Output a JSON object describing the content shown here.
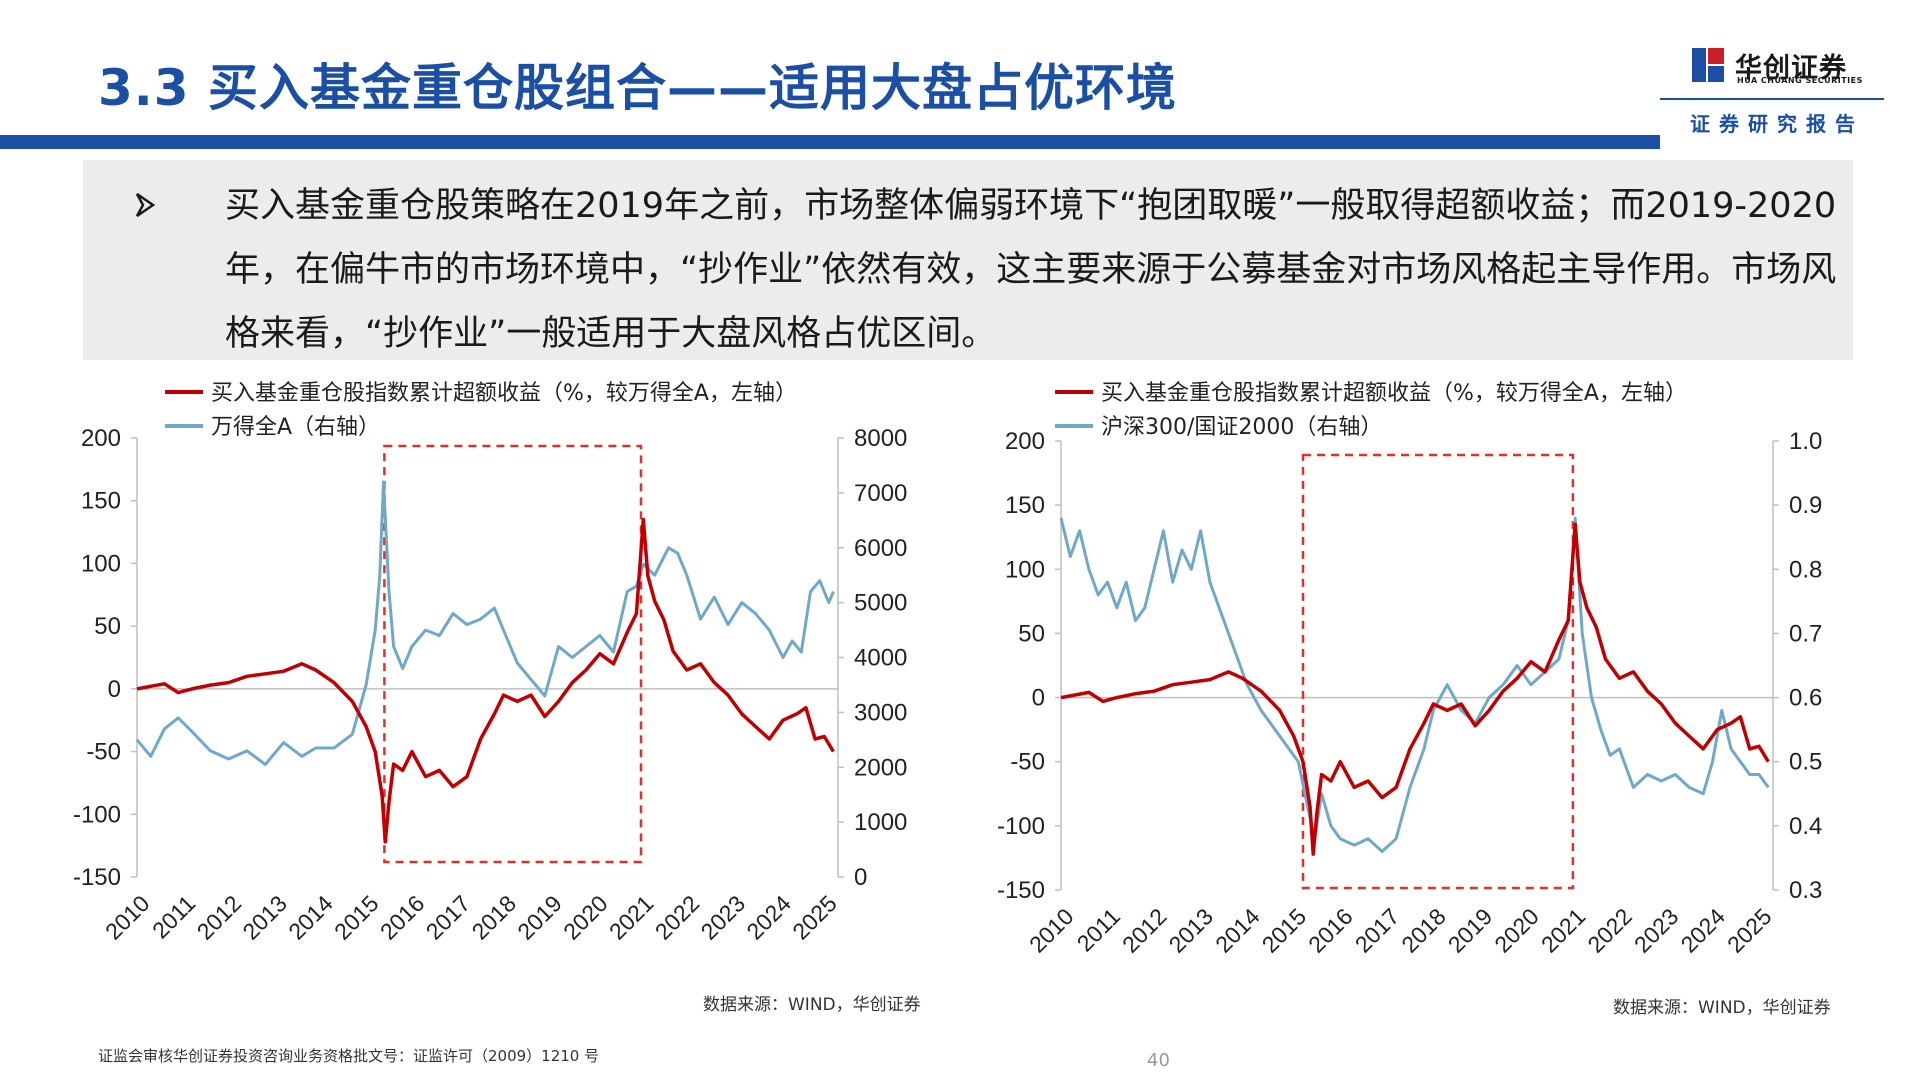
{
  "header": {
    "title": "3.3 买入基金重仓股组合——适用大盘占优环境",
    "logo_cn": "华创证券",
    "logo_en": "HUA CHUANG SECURITIES",
    "report_tag": "证券研究报告",
    "brand_color": "#1a4fa3",
    "logo_accent": "#c8202b"
  },
  "summary": {
    "bullet_icon": "arrow-bullet-icon",
    "text": "买入基金重仓股策略在2019年之前，市场整体偏弱环境下“抱团取暖”一般取得超额收益；而2019-2020年，在偏牛市的市场环境中，“抄作业”依然有效，这主要来源于公募基金对市场风格起主导作用。市场风格来看，“抄作业”一般适用于大盘风格占优区间。"
  },
  "chart_data": [
    {
      "type": "line",
      "x_ticks": [
        "2010",
        "2011",
        "2012",
        "2013",
        "2014",
        "2015",
        "2016",
        "2017",
        "2018",
        "2019",
        "2020",
        "2021",
        "2022",
        "2023",
        "2024",
        "2025"
      ],
      "ylim": [
        -150,
        200
      ],
      "y_ticks": [
        "200",
        "150",
        "100",
        "50",
        "0",
        "-50",
        "-100",
        "-150"
      ],
      "y2lim": [
        0,
        8000
      ],
      "y2_ticks": [
        "8000",
        "7000",
        "6000",
        "5000",
        "4000",
        "3000",
        "2000",
        "1000",
        "0"
      ],
      "highlight_range": [
        2015.4,
        2021.0
      ],
      "series": [
        {
          "name": "买入基金重仓股指数累计超额收益（%，较万得全A，左轴）",
          "axis": "left",
          "color": "#c00000",
          "points": [
            [
              2010.0,
              0
            ],
            [
              2010.3,
              2
            ],
            [
              2010.6,
              4
            ],
            [
              2010.9,
              -3
            ],
            [
              2011.2,
              0
            ],
            [
              2011.6,
              3
            ],
            [
              2012.0,
              5
            ],
            [
              2012.4,
              10
            ],
            [
              2012.8,
              12
            ],
            [
              2013.2,
              14
            ],
            [
              2013.6,
              20
            ],
            [
              2013.9,
              15
            ],
            [
              2014.3,
              5
            ],
            [
              2014.7,
              -10
            ],
            [
              2015.0,
              -30
            ],
            [
              2015.2,
              -50
            ],
            [
              2015.35,
              -85
            ],
            [
              2015.42,
              -122
            ],
            [
              2015.5,
              -90
            ],
            [
              2015.6,
              -60
            ],
            [
              2015.8,
              -65
            ],
            [
              2016.0,
              -50
            ],
            [
              2016.3,
              -70
            ],
            [
              2016.6,
              -65
            ],
            [
              2016.9,
              -78
            ],
            [
              2017.2,
              -70
            ],
            [
              2017.5,
              -40
            ],
            [
              2017.8,
              -20
            ],
            [
              2018.0,
              -5
            ],
            [
              2018.3,
              -10
            ],
            [
              2018.6,
              -5
            ],
            [
              2018.9,
              -22
            ],
            [
              2019.2,
              -10
            ],
            [
              2019.5,
              5
            ],
            [
              2019.8,
              15
            ],
            [
              2020.1,
              28
            ],
            [
              2020.4,
              20
            ],
            [
              2020.7,
              45
            ],
            [
              2020.9,
              60
            ],
            [
              2021.05,
              135
            ],
            [
              2021.15,
              90
            ],
            [
              2021.3,
              70
            ],
            [
              2021.5,
              55
            ],
            [
              2021.7,
              30
            ],
            [
              2022.0,
              15
            ],
            [
              2022.3,
              20
            ],
            [
              2022.6,
              5
            ],
            [
              2022.9,
              -5
            ],
            [
              2023.2,
              -20
            ],
            [
              2023.5,
              -30
            ],
            [
              2023.8,
              -40
            ],
            [
              2024.1,
              -25
            ],
            [
              2024.4,
              -20
            ],
            [
              2024.6,
              -15
            ],
            [
              2024.8,
              -40
            ],
            [
              2025.0,
              -38
            ],
            [
              2025.2,
              -50
            ]
          ]
        },
        {
          "name": "万得全A（右轴）",
          "axis": "right",
          "color": "#6fa8c8",
          "points": [
            [
              2010.0,
              2500
            ],
            [
              2010.3,
              2200
            ],
            [
              2010.6,
              2700
            ],
            [
              2010.9,
              2900
            ],
            [
              2011.2,
              2650
            ],
            [
              2011.6,
              2300
            ],
            [
              2012.0,
              2150
            ],
            [
              2012.4,
              2300
            ],
            [
              2012.8,
              2050
            ],
            [
              2013.2,
              2450
            ],
            [
              2013.6,
              2200
            ],
            [
              2013.9,
              2350
            ],
            [
              2014.3,
              2350
            ],
            [
              2014.7,
              2600
            ],
            [
              2015.0,
              3500
            ],
            [
              2015.2,
              4500
            ],
            [
              2015.3,
              5500
            ],
            [
              2015.38,
              7200
            ],
            [
              2015.5,
              5200
            ],
            [
              2015.6,
              4200
            ],
            [
              2015.8,
              3800
            ],
            [
              2016.0,
              4200
            ],
            [
              2016.3,
              4500
            ],
            [
              2016.6,
              4400
            ],
            [
              2016.9,
              4800
            ],
            [
              2017.2,
              4600
            ],
            [
              2017.5,
              4700
            ],
            [
              2017.8,
              4900
            ],
            [
              2018.0,
              4500
            ],
            [
              2018.3,
              3900
            ],
            [
              2018.6,
              3600
            ],
            [
              2018.9,
              3300
            ],
            [
              2019.2,
              4200
            ],
            [
              2019.5,
              4000
            ],
            [
              2019.8,
              4200
            ],
            [
              2020.1,
              4400
            ],
            [
              2020.4,
              4100
            ],
            [
              2020.7,
              5200
            ],
            [
              2020.9,
              5300
            ],
            [
              2021.05,
              5700
            ],
            [
              2021.3,
              5500
            ],
            [
              2021.6,
              6000
            ],
            [
              2021.8,
              5900
            ],
            [
              2022.0,
              5500
            ],
            [
              2022.3,
              4700
            ],
            [
              2022.6,
              5100
            ],
            [
              2022.9,
              4600
            ],
            [
              2023.2,
              5000
            ],
            [
              2023.5,
              4800
            ],
            [
              2023.8,
              4500
            ],
            [
              2024.1,
              4000
            ],
            [
              2024.3,
              4300
            ],
            [
              2024.5,
              4100
            ],
            [
              2024.7,
              5200
            ],
            [
              2024.9,
              5400
            ],
            [
              2025.1,
              5000
            ],
            [
              2025.2,
              5200
            ]
          ]
        }
      ]
    },
    {
      "type": "line",
      "x_ticks": [
        "2010",
        "2011",
        "2012",
        "2013",
        "2014",
        "2015",
        "2016",
        "2017",
        "2018",
        "2019",
        "2020",
        "2021",
        "2022",
        "2023",
        "2024",
        "2025"
      ],
      "ylim": [
        -150,
        200
      ],
      "y_ticks": [
        "200",
        "150",
        "100",
        "50",
        "0",
        "-50",
        "-100",
        "-150"
      ],
      "y2lim": [
        0.3,
        1.0
      ],
      "y2_ticks": [
        "1.0",
        "0.9",
        "0.8",
        "0.7",
        "0.6",
        "0.5",
        "0.4",
        "0.3"
      ],
      "highlight_range": [
        2015.2,
        2021.0
      ],
      "series": [
        {
          "name": "买入基金重仓股指数累计超额收益（%，较万得全A，左轴）",
          "axis": "left",
          "color": "#c00000",
          "points": [
            [
              2010.0,
              0
            ],
            [
              2010.3,
              2
            ],
            [
              2010.6,
              4
            ],
            [
              2010.9,
              -3
            ],
            [
              2011.2,
              0
            ],
            [
              2011.6,
              3
            ],
            [
              2012.0,
              5
            ],
            [
              2012.4,
              10
            ],
            [
              2012.8,
              12
            ],
            [
              2013.2,
              14
            ],
            [
              2013.6,
              20
            ],
            [
              2013.9,
              15
            ],
            [
              2014.3,
              5
            ],
            [
              2014.7,
              -10
            ],
            [
              2015.0,
              -30
            ],
            [
              2015.2,
              -50
            ],
            [
              2015.35,
              -85
            ],
            [
              2015.42,
              -122
            ],
            [
              2015.5,
              -90
            ],
            [
              2015.6,
              -60
            ],
            [
              2015.8,
              -65
            ],
            [
              2016.0,
              -50
            ],
            [
              2016.3,
              -70
            ],
            [
              2016.6,
              -65
            ],
            [
              2016.9,
              -78
            ],
            [
              2017.2,
              -70
            ],
            [
              2017.5,
              -40
            ],
            [
              2017.8,
              -20
            ],
            [
              2018.0,
              -5
            ],
            [
              2018.3,
              -10
            ],
            [
              2018.6,
              -5
            ],
            [
              2018.9,
              -22
            ],
            [
              2019.2,
              -10
            ],
            [
              2019.5,
              5
            ],
            [
              2019.8,
              15
            ],
            [
              2020.1,
              28
            ],
            [
              2020.4,
              20
            ],
            [
              2020.7,
              45
            ],
            [
              2020.9,
              60
            ],
            [
              2021.05,
              135
            ],
            [
              2021.15,
              90
            ],
            [
              2021.3,
              70
            ],
            [
              2021.5,
              55
            ],
            [
              2021.7,
              30
            ],
            [
              2022.0,
              15
            ],
            [
              2022.3,
              20
            ],
            [
              2022.6,
              5
            ],
            [
              2022.9,
              -5
            ],
            [
              2023.2,
              -20
            ],
            [
              2023.5,
              -30
            ],
            [
              2023.8,
              -40
            ],
            [
              2024.1,
              -25
            ],
            [
              2024.4,
              -20
            ],
            [
              2024.6,
              -15
            ],
            [
              2024.8,
              -40
            ],
            [
              2025.0,
              -38
            ],
            [
              2025.2,
              -50
            ]
          ]
        },
        {
          "name": "沪深300/国证2000（右轴）",
          "axis": "right",
          "color": "#6fa8c8",
          "points": [
            [
              2010.0,
              0.88
            ],
            [
              2010.2,
              0.82
            ],
            [
              2010.4,
              0.86
            ],
            [
              2010.6,
              0.8
            ],
            [
              2010.8,
              0.76
            ],
            [
              2011.0,
              0.78
            ],
            [
              2011.2,
              0.74
            ],
            [
              2011.4,
              0.78
            ],
            [
              2011.6,
              0.72
            ],
            [
              2011.8,
              0.74
            ],
            [
              2012.0,
              0.8
            ],
            [
              2012.2,
              0.86
            ],
            [
              2012.4,
              0.78
            ],
            [
              2012.6,
              0.83
            ],
            [
              2012.8,
              0.8
            ],
            [
              2013.0,
              0.86
            ],
            [
              2013.2,
              0.78
            ],
            [
              2013.4,
              0.74
            ],
            [
              2013.6,
              0.7
            ],
            [
              2013.8,
              0.66
            ],
            [
              2014.0,
              0.62
            ],
            [
              2014.3,
              0.58
            ],
            [
              2014.6,
              0.55
            ],
            [
              2014.9,
              0.52
            ],
            [
              2015.1,
              0.5
            ],
            [
              2015.3,
              0.43
            ],
            [
              2015.45,
              0.38
            ],
            [
              2015.6,
              0.45
            ],
            [
              2015.8,
              0.4
            ],
            [
              2016.0,
              0.38
            ],
            [
              2016.3,
              0.37
            ],
            [
              2016.6,
              0.38
            ],
            [
              2016.9,
              0.36
            ],
            [
              2017.2,
              0.38
            ],
            [
              2017.5,
              0.46
            ],
            [
              2017.8,
              0.52
            ],
            [
              2018.0,
              0.58
            ],
            [
              2018.3,
              0.62
            ],
            [
              2018.6,
              0.58
            ],
            [
              2018.9,
              0.56
            ],
            [
              2019.2,
              0.6
            ],
            [
              2019.5,
              0.62
            ],
            [
              2019.8,
              0.65
            ],
            [
              2020.1,
              0.62
            ],
            [
              2020.4,
              0.64
            ],
            [
              2020.7,
              0.66
            ],
            [
              2020.9,
              0.72
            ],
            [
              2021.05,
              0.88
            ],
            [
              2021.2,
              0.7
            ],
            [
              2021.4,
              0.6
            ],
            [
              2021.6,
              0.55
            ],
            [
              2021.8,
              0.51
            ],
            [
              2022.0,
              0.52
            ],
            [
              2022.3,
              0.46
            ],
            [
              2022.6,
              0.48
            ],
            [
              2022.9,
              0.47
            ],
            [
              2023.2,
              0.48
            ],
            [
              2023.5,
              0.46
            ],
            [
              2023.8,
              0.45
            ],
            [
              2024.0,
              0.5
            ],
            [
              2024.2,
              0.58
            ],
            [
              2024.4,
              0.52
            ],
            [
              2024.6,
              0.5
            ],
            [
              2024.8,
              0.48
            ],
            [
              2025.0,
              0.48
            ],
            [
              2025.2,
              0.46
            ]
          ]
        }
      ]
    }
  ],
  "sources": [
    "数据来源：WIND，华创证券",
    "数据来源：WIND，华创证券"
  ],
  "footer": {
    "license": "证监会审核华创证券投资咨询业务资格批文号：证监许可（2009）1210 号",
    "page": "40"
  }
}
